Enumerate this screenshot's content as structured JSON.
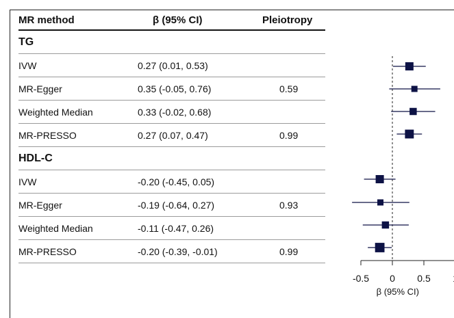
{
  "table": {
    "headers": {
      "method": "MR method",
      "beta": "β (95% CI)",
      "pleiotropy": "Pleiotropy"
    },
    "groups": [
      {
        "name": "TG",
        "rows": [
          {
            "method": "IVW",
            "beta": "0.27 (0.01, 0.53)",
            "pleiotropy": ""
          },
          {
            "method": "MR-Egger",
            "beta": "0.35 (-0.05, 0.76)",
            "pleiotropy": "0.59"
          },
          {
            "method": "Weighted Median",
            "beta": "0.33 (-0.02, 0.68)",
            "pleiotropy": ""
          },
          {
            "method": "MR-PRESSO",
            "beta": "0.27 (0.07, 0.47)",
            "pleiotropy": "0.99"
          }
        ]
      },
      {
        "name": "HDL-C",
        "rows": [
          {
            "method": "IVW",
            "beta": "-0.20 (-0.45, 0.05)",
            "pleiotropy": ""
          },
          {
            "method": "MR-Egger",
            "beta": "-0.19 (-0.64, 0.27)",
            "pleiotropy": "0.93"
          },
          {
            "method": "Weighted Median",
            "beta": "-0.11 (-0.47, 0.26)",
            "pleiotropy": ""
          },
          {
            "method": "MR-PRESSO",
            "beta": "-0.20 (-0.39, -0.01)",
            "pleiotropy": "0.99"
          }
        ]
      }
    ]
  },
  "chart_data": {
    "type": "forest",
    "xlabel": "β (95% CI)",
    "xlim": [
      -0.5,
      1
    ],
    "xticks": [
      -0.5,
      0,
      0.5,
      1
    ],
    "xtick_labels": [
      "-0.5",
      "0",
      "0.5",
      "1"
    ],
    "reference_line": 0,
    "marker_color": "#0d1245",
    "points": [
      {
        "group": "TG",
        "method": "IVW",
        "estimate": 0.27,
        "lower": 0.01,
        "upper": 0.53,
        "weight": 2
      },
      {
        "group": "TG",
        "method": "MR-Egger",
        "estimate": 0.35,
        "lower": -0.05,
        "upper": 0.76,
        "weight": 1
      },
      {
        "group": "TG",
        "method": "Weighted Median",
        "estimate": 0.33,
        "lower": -0.02,
        "upper": 0.68,
        "weight": 1.5
      },
      {
        "group": "TG",
        "method": "MR-PRESSO",
        "estimate": 0.27,
        "lower": 0.07,
        "upper": 0.47,
        "weight": 2.3
      },
      {
        "group": "HDL-C",
        "method": "IVW",
        "estimate": -0.2,
        "lower": -0.45,
        "upper": 0.05,
        "weight": 2
      },
      {
        "group": "HDL-C",
        "method": "MR-Egger",
        "estimate": -0.19,
        "lower": -0.64,
        "upper": 0.27,
        "weight": 1
      },
      {
        "group": "HDL-C",
        "method": "Weighted Median",
        "estimate": -0.11,
        "lower": -0.47,
        "upper": 0.26,
        "weight": 1.5
      },
      {
        "group": "HDL-C",
        "method": "MR-PRESSO",
        "estimate": -0.2,
        "lower": -0.39,
        "upper": -0.01,
        "weight": 2.6
      }
    ]
  }
}
